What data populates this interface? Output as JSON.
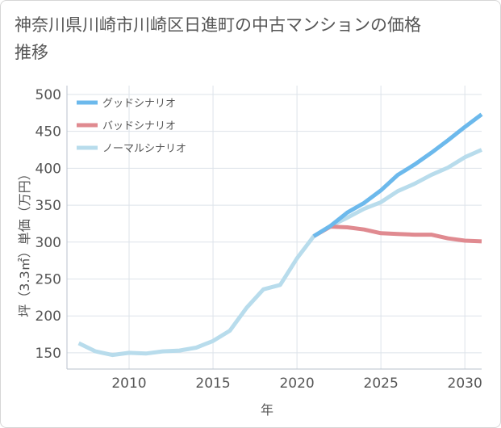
{
  "chart_data": {
    "type": "line",
    "title": "神奈川県川崎市川崎区日進町の中古マンションの価格推移",
    "xlabel": "年",
    "ylabel": "坪（3.3㎡）単価（万円）",
    "xlim": [
      2006.3,
      2031
    ],
    "ylim": [
      128,
      512
    ],
    "x_ticks": [
      2010,
      2015,
      2020,
      2025,
      2030
    ],
    "y_ticks": [
      150,
      200,
      250,
      300,
      350,
      400,
      450,
      500
    ],
    "grid": true,
    "legend_position": "top-left",
    "series": [
      {
        "name": "グッドシナリオ",
        "color": "#6cb9ec",
        "x": [
          2021,
          2022,
          2023,
          2024,
          2025,
          2026,
          2027,
          2028,
          2029,
          2030,
          2031
        ],
        "y": [
          308,
          322,
          340,
          353,
          370,
          391,
          405,
          421,
          438,
          456,
          473
        ]
      },
      {
        "name": "バッドシナリオ",
        "color": "#e08a90",
        "x": [
          2021,
          2022,
          2023,
          2024,
          2025,
          2026,
          2027,
          2028,
          2029,
          2030,
          2031
        ],
        "y": [
          308,
          321,
          320,
          317,
          312,
          311,
          310,
          310,
          305,
          302,
          301
        ]
      },
      {
        "name": "ノーマルシナリオ",
        "color": "#b8dcec",
        "x": [
          2007,
          2008,
          2009,
          2010,
          2011,
          2012,
          2013,
          2014,
          2015,
          2016,
          2017,
          2018,
          2019,
          2020,
          2021,
          2022,
          2023,
          2024,
          2025,
          2026,
          2027,
          2028,
          2029,
          2030,
          2031
        ],
        "y": [
          163,
          152,
          147,
          150,
          149,
          152,
          153,
          157,
          166,
          180,
          211,
          236,
          242,
          278,
          308,
          322,
          333,
          345,
          354,
          369,
          379,
          391,
          401,
          415,
          425
        ]
      }
    ]
  }
}
